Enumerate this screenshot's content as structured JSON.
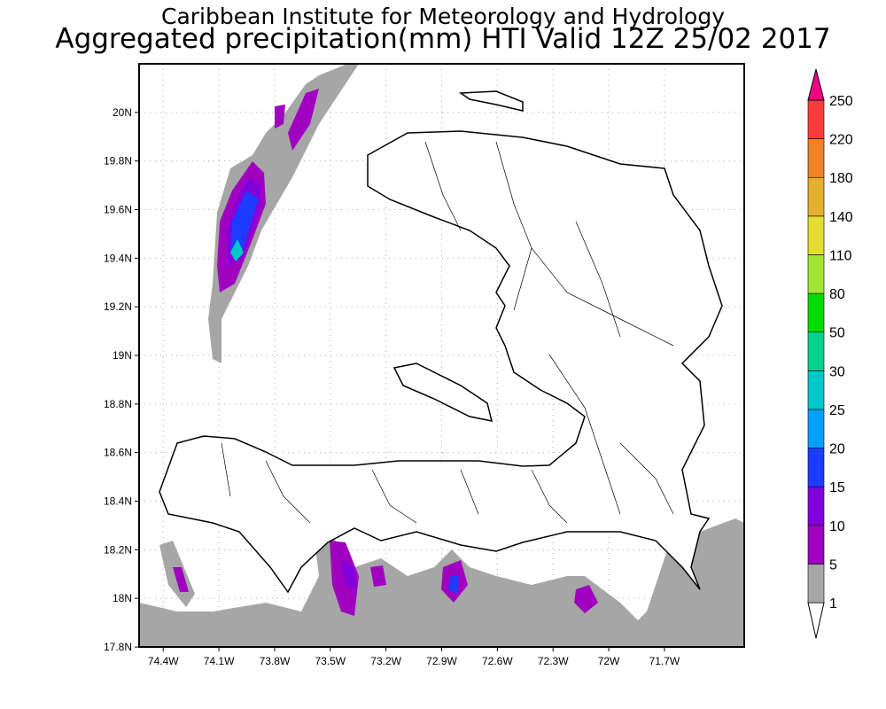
{
  "chart_data": {
    "type": "heatmap",
    "title": "Caribbean Institute for Meteorology and Hydrology",
    "subtitle": "Aggregated precipitation(mm) HTI Valid 12Z 25/02 2017",
    "xlabel": "",
    "ylabel": "",
    "xlim": [
      -74.53,
      -71.27
    ],
    "ylim": [
      17.8,
      20.2
    ],
    "x_ticks": [
      {
        "v": -74.4,
        "label": "74.4W"
      },
      {
        "v": -74.1,
        "label": "74.1W"
      },
      {
        "v": -73.8,
        "label": "73.8W"
      },
      {
        "v": -73.5,
        "label": "73.5W"
      },
      {
        "v": -73.2,
        "label": "73.2W"
      },
      {
        "v": -72.9,
        "label": "72.9W"
      },
      {
        "v": -72.6,
        "label": "72.6W"
      },
      {
        "v": -72.3,
        "label": "72.3W"
      },
      {
        "v": -72.0,
        "label": "72W"
      },
      {
        "v": -71.7,
        "label": "71.7W"
      }
    ],
    "y_ticks": [
      {
        "v": 17.8,
        "label": "17.8N"
      },
      {
        "v": 18.0,
        "label": "18N"
      },
      {
        "v": 18.2,
        "label": "18.2N"
      },
      {
        "v": 18.4,
        "label": "18.4N"
      },
      {
        "v": 18.6,
        "label": "18.6N"
      },
      {
        "v": 18.8,
        "label": "18.8N"
      },
      {
        "v": 19.0,
        "label": "19N"
      },
      {
        "v": 19.2,
        "label": "19.2N"
      },
      {
        "v": 19.4,
        "label": "19.4N"
      },
      {
        "v": 19.6,
        "label": "19.6N"
      },
      {
        "v": 19.8,
        "label": "19.8N"
      },
      {
        "v": 20.0,
        "label": "20N"
      }
    ],
    "grid": true,
    "colorbar": {
      "levels": [
        "1",
        "5",
        "10",
        "15",
        "20",
        "25",
        "30",
        "50",
        "80",
        "110",
        "140",
        "180",
        "220",
        "250"
      ],
      "colors": [
        "#a6a6a6",
        "#a000c0",
        "#8200dc",
        "#1e3cff",
        "#00a0ff",
        "#00c8c8",
        "#00d28c",
        "#00dc00",
        "#a0e632",
        "#e6dc32",
        "#e6af2d",
        "#f08228",
        "#fa3c3c",
        "#f00082"
      ],
      "below_color": "#ffffff"
    }
  }
}
